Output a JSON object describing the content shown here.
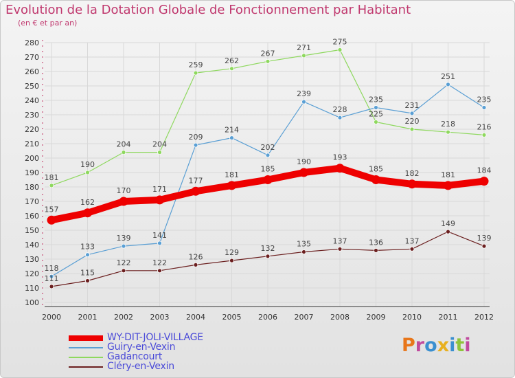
{
  "title": "Evolution de la Dotation Globale de Fonctionnement par Habitant",
  "subtitle": "(en € et par an)",
  "logo_text": "Proxiti",
  "colors": {
    "title": "#c0386e",
    "axis": "#333333",
    "grid": "#d8d8d8",
    "legend_text": "#4a4ad8"
  },
  "chart_data": {
    "type": "line",
    "x": [
      "2000",
      "2001",
      "2002",
      "2003",
      "2004",
      "2005",
      "2006",
      "2007",
      "2008",
      "2009",
      "2010",
      "2011",
      "2012"
    ],
    "yticks": [
      100,
      110,
      120,
      130,
      140,
      150,
      160,
      170,
      180,
      190,
      200,
      210,
      220,
      230,
      240,
      250,
      260,
      270,
      280
    ],
    "ylim": [
      100,
      280
    ],
    "grid": true,
    "legend_position": "bottom-left",
    "series": [
      {
        "name": "WY-DIT-JOLI-VILLAGE",
        "color": "#ee0000",
        "values": [
          157,
          162,
          170,
          171,
          177,
          181,
          185,
          190,
          193,
          185,
          182,
          181,
          184
        ]
      },
      {
        "name": "Guiry-en-Vexin",
        "color": "#5a9fd4",
        "values": [
          118,
          133,
          139,
          141,
          209,
          214,
          202,
          239,
          228,
          235,
          231,
          251,
          235
        ]
      },
      {
        "name": "Gadancourt",
        "color": "#8ed85e",
        "values": [
          181,
          190,
          204,
          204,
          259,
          262,
          267,
          271,
          275,
          225,
          220,
          218,
          216
        ]
      },
      {
        "name": "Cléry-en-Vexin",
        "color": "#6b1f1f",
        "values": [
          111,
          115,
          122,
          122,
          126,
          129,
          132,
          135,
          137,
          136,
          137,
          149,
          139
        ]
      }
    ]
  }
}
